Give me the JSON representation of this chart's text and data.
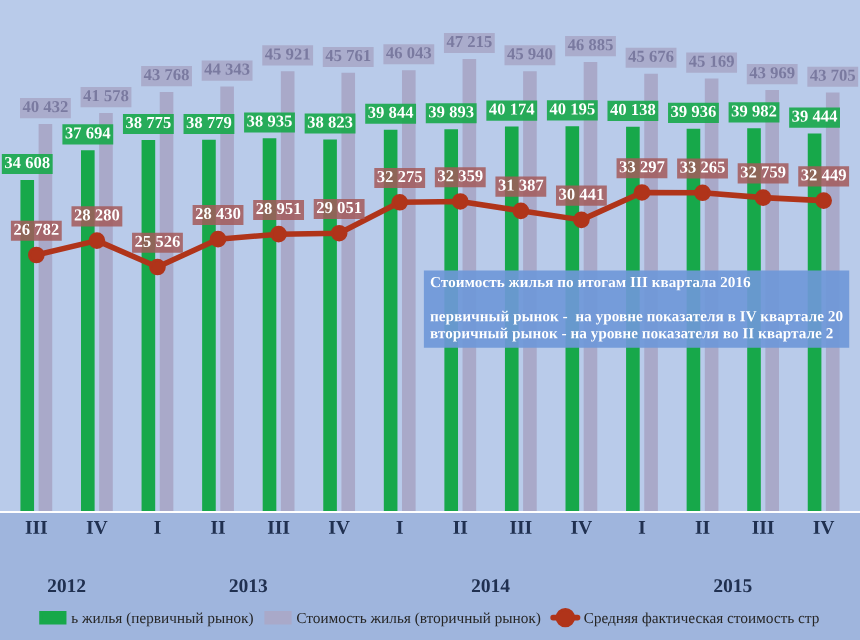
{
  "chart_data": {
    "type": "bar",
    "categories": [
      "III",
      "IV",
      "I",
      "II",
      "III",
      "IV",
      "I",
      "II",
      "III",
      "IV",
      "I",
      "II",
      "III",
      "IV"
    ],
    "series": [
      {
        "name": "ь жилья (первичный рынок)",
        "color": "#17a84a",
        "values": [
          34608,
          37694,
          38775,
          38779,
          38935,
          38823,
          39844,
          39893,
          40174,
          40195,
          40138,
          39936,
          39982,
          39444
        ],
        "value_labels": [
          "34 608",
          "37 694",
          "38 775",
          "38 779",
          "38 935",
          "38 823",
          "39 844",
          "39 893",
          "40 174",
          "40 195",
          "40 138",
          "39 936",
          "39 982",
          "39 444"
        ]
      },
      {
        "name": "Стоимость жилья (вторичный рынок)",
        "color": "#a9a9c9",
        "values": [
          40432,
          41578,
          43768,
          44343,
          45921,
          45761,
          46043,
          47215,
          45940,
          46885,
          45676,
          45169,
          43969,
          43705
        ],
        "value_labels": [
          "40 432",
          "41 578",
          "43 768",
          "44 343",
          "45 921",
          "45 761",
          "46 043",
          "47 215",
          "45 940",
          "46 885",
          "45 676",
          "45 169",
          "43 969",
          "43 705"
        ]
      },
      {
        "name": "Средняя фактическая стоимость стр",
        "type": "line",
        "color": "#b0341a",
        "marker": "circle",
        "values": [
          26782,
          28280,
          25526,
          28430,
          28951,
          29051,
          32275,
          32359,
          31387,
          30441,
          33297,
          33265,
          32759,
          32449
        ],
        "value_labels": [
          "26 782",
          "28 280",
          "25 526",
          "28 430",
          "28 951",
          "29 051",
          "32 275",
          "32 359",
          "31 387",
          "30 441",
          "33 297",
          "33 265",
          "32 759",
          "32 449"
        ]
      }
    ],
    "annotations": [
      "2012",
      "2013",
      "2014",
      "2015",
      "Стоимость жилья по итогам III квартала 2016",
      "первичный рынок -  на уровне показателя в IV квартале 20",
      "вторичный рынок - на уровне показателя во II квартале 2"
    ],
    "legend": "bottom",
    "grid": false
  }
}
